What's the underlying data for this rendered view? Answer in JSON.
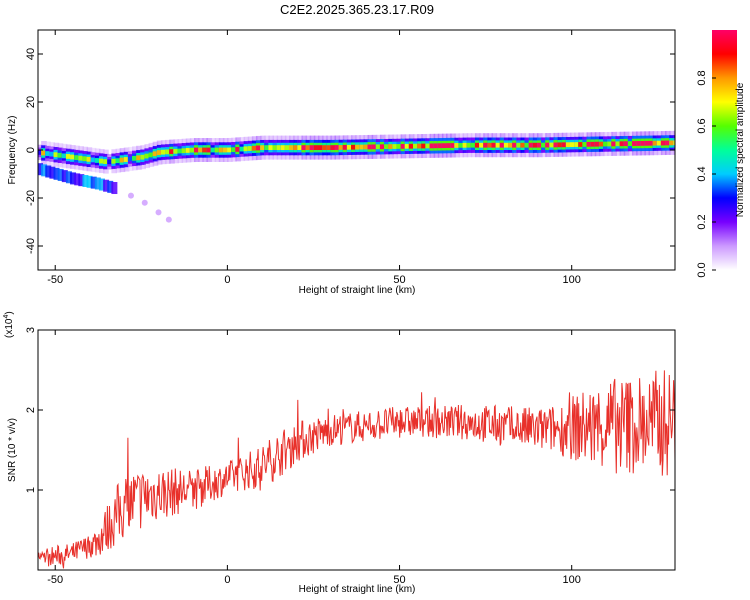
{
  "title": "C2E2.2025.365.23.17.R09",
  "chart_data": [
    {
      "type": "heatmap",
      "xlabel": "Height of straight line (km)",
      "ylabel": "Frequency (Hz)",
      "xlim": [
        -55,
        130
      ],
      "ylim": [
        -50,
        50
      ],
      "xticks": [
        -50,
        0,
        50,
        100
      ],
      "yticks": [
        -40,
        -20,
        0,
        20,
        40
      ],
      "colorbar": {
        "label": "Normalized spectral amplitude",
        "range": [
          0,
          1
        ],
        "ticks": [
          "0.0",
          "0.2",
          "0.4",
          "0.6",
          "0.8"
        ],
        "colors": [
          "#ffffff",
          "#cc99ff",
          "#7700ff",
          "#0000ff",
          "#00ccff",
          "#00ff99",
          "#55ff00",
          "#ffff00",
          "#ff9900",
          "#ff0000",
          "#ff0066"
        ]
      },
      "ridge": [
        {
          "x": -55,
          "f": -1
        },
        {
          "x": -50,
          "f": -2
        },
        {
          "x": -45,
          "f": -3
        },
        {
          "x": -40,
          "f": -4
        },
        {
          "x": -35,
          "f": -5
        },
        {
          "x": -30,
          "f": -4
        },
        {
          "x": -25,
          "f": -3
        },
        {
          "x": -20,
          "f": -1
        },
        {
          "x": -10,
          "f": 0
        },
        {
          "x": 0,
          "f": 0
        },
        {
          "x": 10,
          "f": 1
        },
        {
          "x": 30,
          "f": 1
        },
        {
          "x": 50,
          "f": 1.5
        },
        {
          "x": 70,
          "f": 2
        },
        {
          "x": 90,
          "f": 2
        },
        {
          "x": 110,
          "f": 2.5
        },
        {
          "x": 130,
          "f": 3
        }
      ],
      "secondary_ridge": [
        {
          "x": -55,
          "f": -8
        },
        {
          "x": -45,
          "f": -12
        },
        {
          "x": -38,
          "f": -14
        },
        {
          "x": -33,
          "f": -16
        }
      ],
      "stray_points": [
        {
          "x": -28,
          "f": -19
        },
        {
          "x": -24,
          "f": -22
        },
        {
          "x": -20,
          "f": -26
        },
        {
          "x": -17,
          "f": -29
        }
      ]
    },
    {
      "type": "line",
      "xlabel": "Height of straight line (km)",
      "ylabel": "SNR (10 * v/v)",
      "scale_label": "(x10",
      "scale_exp": "4",
      "scale_suffix": ")",
      "xlim": [
        -55,
        130
      ],
      "ylim": [
        0,
        3
      ],
      "xticks": [
        -50,
        0,
        50,
        100
      ],
      "yticks": [
        1,
        2,
        3
      ],
      "series": [
        {
          "color": "#e8302a",
          "trend": [
            {
              "x": -55,
              "y": 0.15
            },
            {
              "x": -45,
              "y": 0.2
            },
            {
              "x": -38,
              "y": 0.35
            },
            {
              "x": -30,
              "y": 0.8
            },
            {
              "x": -22,
              "y": 0.95
            },
            {
              "x": -10,
              "y": 1.0
            },
            {
              "x": 0,
              "y": 1.15
            },
            {
              "x": 10,
              "y": 1.3
            },
            {
              "x": 20,
              "y": 1.6
            },
            {
              "x": 30,
              "y": 1.75
            },
            {
              "x": 50,
              "y": 1.85
            },
            {
              "x": 70,
              "y": 1.85
            },
            {
              "x": 90,
              "y": 1.75
            },
            {
              "x": 110,
              "y": 1.8
            },
            {
              "x": 130,
              "y": 1.85
            }
          ],
          "noise": [
            {
              "x": -55,
              "a": 0.12
            },
            {
              "x": -40,
              "a": 0.15
            },
            {
              "x": -30,
              "a": 0.45
            },
            {
              "x": -15,
              "a": 0.3
            },
            {
              "x": 0,
              "a": 0.2
            },
            {
              "x": 15,
              "a": 0.3
            },
            {
              "x": 30,
              "a": 0.2
            },
            {
              "x": 60,
              "a": 0.2
            },
            {
              "x": 95,
              "a": 0.3
            },
            {
              "x": 110,
              "a": 0.6
            },
            {
              "x": 130,
              "a": 0.7
            }
          ],
          "samples": 900
        }
      ]
    }
  ]
}
